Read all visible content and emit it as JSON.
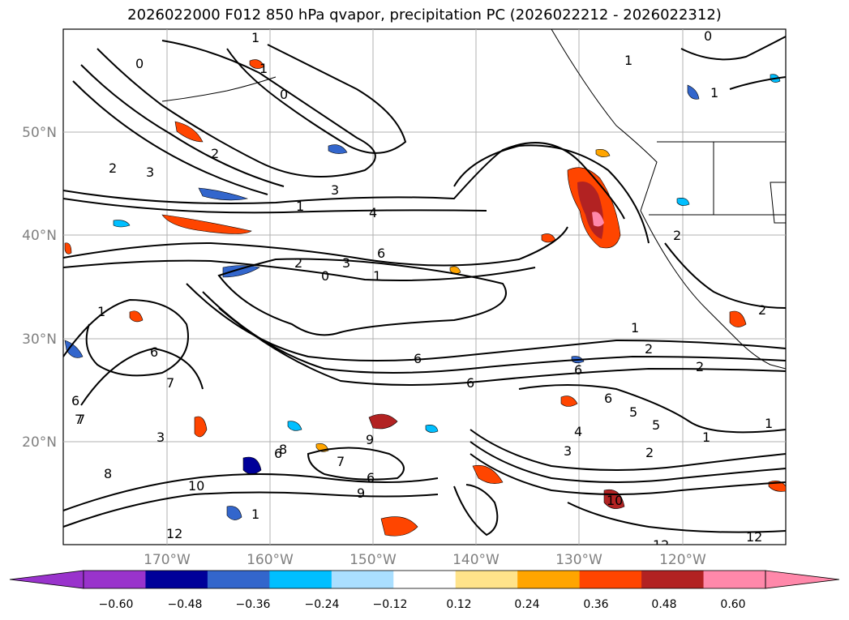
{
  "title": "2026022000 F012 850 hPa qvapor, precipitation PC (2026022212 - 2026022312)",
  "lat_labels": [
    "50°N",
    "40°N",
    "30°N",
    "20°N"
  ],
  "lon_labels": [
    "170°W",
    "160°W",
    "150°W",
    "140°W",
    "130°W",
    "120°W"
  ],
  "colorbar": {
    "ticks": [
      "−0.60",
      "−0.48",
      "−0.36",
      "−0.24",
      "−0.12",
      "0.12",
      "0.24",
      "0.36",
      "0.48",
      "0.60"
    ],
    "colors": [
      "#9933cc",
      "#9933cc",
      "#000099",
      "#3366cc",
      "#00bfff",
      "#aadfff",
      "#ffffff",
      "#ffe38a",
      "#ffa500",
      "#ff4500",
      "#b22222",
      "#ff88aa",
      "#ff88aa"
    ]
  },
  "contour_labels": [
    "1",
    "0",
    "1",
    "2",
    "3",
    "3",
    "4",
    "1",
    "2",
    "3",
    "0",
    "1",
    "6",
    "1",
    "6",
    "7",
    "8",
    "6",
    "1",
    "2",
    "6",
    "2",
    "6",
    "5",
    "5",
    "4",
    "3",
    "2",
    "1",
    "1",
    "7",
    "8",
    "9",
    "6",
    "9",
    "3",
    "10",
    "12",
    "12",
    "10",
    "12",
    "6",
    "7",
    "0",
    "1",
    "2",
    "1",
    "0",
    "2",
    "6",
    "7",
    "6",
    "1",
    "2"
  ]
}
